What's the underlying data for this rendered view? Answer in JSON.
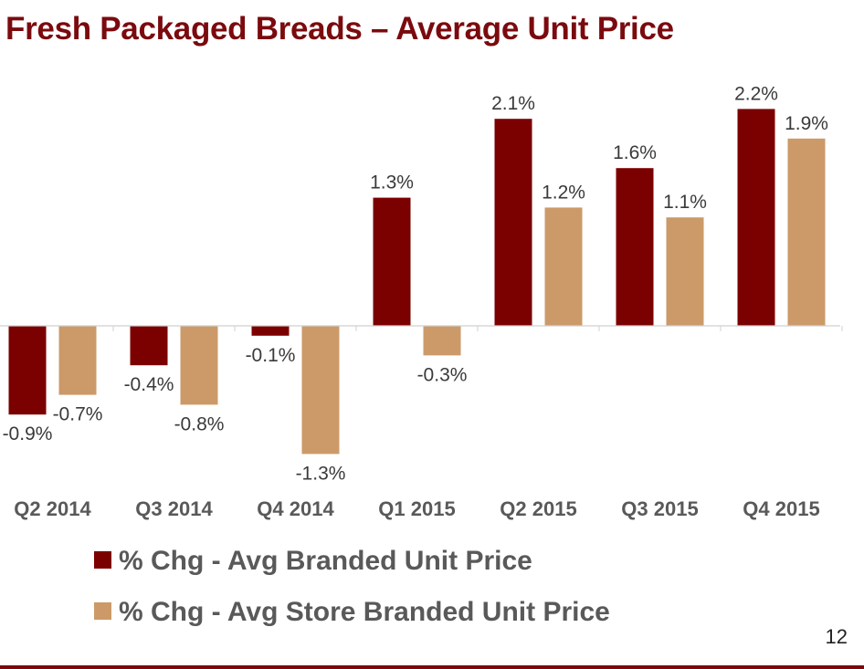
{
  "slide": {
    "title": "Fresh Packaged Breads – Average Unit Price",
    "page_number": "12",
    "accent_color": "#7b0a0e"
  },
  "chart_data": {
    "type": "bar",
    "title": "",
    "xlabel": "",
    "ylabel": "",
    "categories": [
      "Q2 2014",
      "Q3 2014",
      "Q4 2014",
      "Q1 2015",
      "Q2 2015",
      "Q3 2015",
      "Q4 2015"
    ],
    "series": [
      {
        "name": "% Chg - Avg Branded Unit Price",
        "color": "#7b0000",
        "values": [
          -0.9,
          -0.4,
          -0.1,
          1.3,
          2.1,
          1.6,
          2.2
        ],
        "labels": [
          "-0.9%",
          "-0.4%",
          "-0.1%",
          "1.3%",
          "2.1%",
          "1.6%",
          "2.2%"
        ]
      },
      {
        "name": "% Chg - Avg Store Branded Unit Price",
        "color": "#cc9a68",
        "values": [
          -0.7,
          -0.8,
          -1.3,
          -0.3,
          1.2,
          1.1,
          1.9
        ],
        "labels": [
          "-0.7%",
          "-0.8%",
          "-1.3%",
          "-0.3%",
          "1.2%",
          "1.1%",
          "1.9%"
        ]
      }
    ],
    "legend_position": "bottom",
    "grid": false
  }
}
